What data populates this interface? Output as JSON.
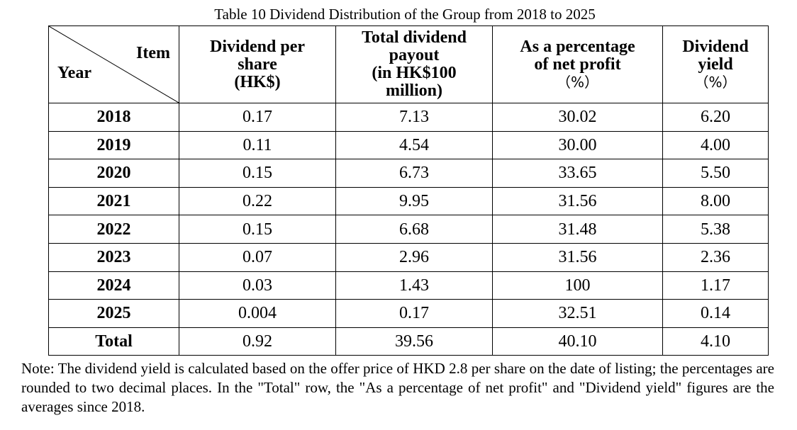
{
  "caption": "Table 10 Dividend Distribution of the Group from 2018 to 2025",
  "header": {
    "corner_item": "Item",
    "corner_year": "Year",
    "dps": [
      "Dividend per",
      "share",
      "(HK$)"
    ],
    "total": [
      "Total dividend",
      "payout",
      "(in HK$100",
      "million)"
    ],
    "pct": [
      "As a percentage",
      "of net profit",
      "（%）"
    ],
    "yield": [
      "Dividend",
      "yield",
      "（%）"
    ]
  },
  "rows": [
    {
      "year": "2018",
      "dps": "0.17",
      "total": "7.13",
      "pct": "30.02",
      "yield": "6.20"
    },
    {
      "year": "2019",
      "dps": "0.11",
      "total": "4.54",
      "pct": "30.00",
      "yield": "4.00"
    },
    {
      "year": "2020",
      "dps": "0.15",
      "total": "6.73",
      "pct": "33.65",
      "yield": "5.50"
    },
    {
      "year": "2021",
      "dps": "0.22",
      "total": "9.95",
      "pct": "31.56",
      "yield": "8.00"
    },
    {
      "year": "2022",
      "dps": "0.15",
      "total": "6.68",
      "pct": "31.48",
      "yield": "5.38"
    },
    {
      "year": "2023",
      "dps": "0.07",
      "total": "2.96",
      "pct": "31.56",
      "yield": "2.36"
    },
    {
      "year": "2024",
      "dps": "0.03",
      "total": "1.43",
      "pct": "100",
      "yield": "1.17"
    },
    {
      "year": "2025",
      "dps": "0.004",
      "total": "0.17",
      "pct": "32.51",
      "yield": "0.14"
    }
  ],
  "total_row": {
    "label": "Total",
    "dps": "0.92",
    "total": "39.56",
    "pct": "40.10",
    "yield": "4.10"
  },
  "note": "Note: The dividend yield is calculated based on the offer price of HKD 2.8 per share on the date of listing; the percentages are rounded to two decimal places. In the \"Total\" row, the \"As a percentage of net profit\" and \"Dividend yield\" figures are the averages since 2018."
}
